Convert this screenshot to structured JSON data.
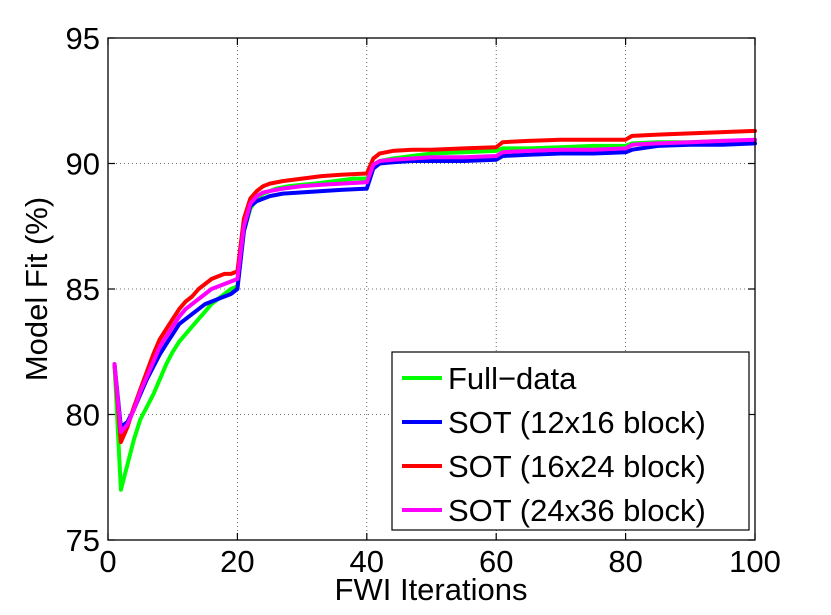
{
  "chart_data": {
    "type": "line",
    "title": "",
    "xlabel": "FWI Iterations",
    "ylabel": "Model Fit (%)",
    "xlim": [
      0,
      100
    ],
    "ylim": [
      75,
      95
    ],
    "xticks": [
      0,
      20,
      40,
      60,
      80,
      100
    ],
    "yticks": [
      75,
      80,
      85,
      90,
      95
    ],
    "xtick_labels": [
      "0",
      "20",
      "40",
      "60",
      "80",
      "100"
    ],
    "ytick_labels": [
      "75",
      "80",
      "85",
      "90",
      "95"
    ],
    "grid": true,
    "legend_position": "bottom-right",
    "series": [
      {
        "name": "Full−data",
        "color": "#00ff00",
        "points": [
          [
            1,
            82.0
          ],
          [
            2,
            77.0
          ],
          [
            3,
            78.0
          ],
          [
            4,
            79.0
          ],
          [
            5,
            79.8
          ],
          [
            6,
            80.3
          ],
          [
            7,
            80.8
          ],
          [
            8,
            81.4
          ],
          [
            9,
            82.0
          ],
          [
            10,
            82.5
          ],
          [
            11,
            82.9
          ],
          [
            12,
            83.2
          ],
          [
            13,
            83.5
          ],
          [
            14,
            83.8
          ],
          [
            15,
            84.1
          ],
          [
            16,
            84.4
          ],
          [
            17,
            84.6
          ],
          [
            18,
            84.8
          ],
          [
            19,
            85.0
          ],
          [
            20,
            85.1
          ],
          [
            21,
            87.3
          ],
          [
            22,
            88.2
          ],
          [
            23,
            88.6
          ],
          [
            24,
            88.8
          ],
          [
            25,
            88.9
          ],
          [
            26,
            89.0
          ],
          [
            27,
            89.05
          ],
          [
            28,
            89.1
          ],
          [
            30,
            89.15
          ],
          [
            32,
            89.2
          ],
          [
            35,
            89.3
          ],
          [
            38,
            89.4
          ],
          [
            40,
            89.4
          ],
          [
            41,
            89.9
          ],
          [
            42,
            90.1
          ],
          [
            44,
            90.2
          ],
          [
            47,
            90.3
          ],
          [
            50,
            90.4
          ],
          [
            55,
            90.45
          ],
          [
            60,
            90.5
          ],
          [
            61,
            90.6
          ],
          [
            65,
            90.6
          ],
          [
            70,
            90.65
          ],
          [
            75,
            90.7
          ],
          [
            80,
            90.7
          ],
          [
            81,
            90.8
          ],
          [
            85,
            90.85
          ],
          [
            90,
            90.85
          ],
          [
            95,
            90.9
          ],
          [
            100,
            90.9
          ]
        ]
      },
      {
        "name": "SOT (12x16 block)",
        "color": "#0000ff",
        "points": [
          [
            1,
            82.0
          ],
          [
            2,
            79.5
          ],
          [
            3,
            79.7
          ],
          [
            4,
            80.2
          ],
          [
            5,
            80.8
          ],
          [
            6,
            81.4
          ],
          [
            7,
            81.9
          ],
          [
            8,
            82.4
          ],
          [
            9,
            82.8
          ],
          [
            10,
            83.2
          ],
          [
            11,
            83.6
          ],
          [
            12,
            83.8
          ],
          [
            13,
            84.0
          ],
          [
            14,
            84.2
          ],
          [
            15,
            84.4
          ],
          [
            16,
            84.5
          ],
          [
            17,
            84.6
          ],
          [
            18,
            84.7
          ],
          [
            19,
            84.8
          ],
          [
            20,
            85.0
          ],
          [
            21,
            87.3
          ],
          [
            22,
            88.3
          ],
          [
            23,
            88.5
          ],
          [
            24,
            88.6
          ],
          [
            25,
            88.7
          ],
          [
            27,
            88.8
          ],
          [
            30,
            88.85
          ],
          [
            33,
            88.9
          ],
          [
            36,
            88.95
          ],
          [
            40,
            89.0
          ],
          [
            41,
            89.8
          ],
          [
            42,
            90.0
          ],
          [
            44,
            90.05
          ],
          [
            47,
            90.1
          ],
          [
            50,
            90.1
          ],
          [
            55,
            90.1
          ],
          [
            60,
            90.15
          ],
          [
            61,
            90.3
          ],
          [
            65,
            90.35
          ],
          [
            70,
            90.4
          ],
          [
            75,
            90.4
          ],
          [
            80,
            90.45
          ],
          [
            81,
            90.55
          ],
          [
            85,
            90.7
          ],
          [
            90,
            90.75
          ],
          [
            95,
            90.75
          ],
          [
            100,
            90.8
          ]
        ]
      },
      {
        "name": "SOT (16x24 block)",
        "color": "#ff0000",
        "points": [
          [
            1,
            82.0
          ],
          [
            2,
            78.9
          ],
          [
            3,
            79.5
          ],
          [
            4,
            80.3
          ],
          [
            5,
            81.0
          ],
          [
            6,
            81.7
          ],
          [
            7,
            82.4
          ],
          [
            8,
            83.0
          ],
          [
            9,
            83.4
          ],
          [
            10,
            83.8
          ],
          [
            11,
            84.2
          ],
          [
            12,
            84.5
          ],
          [
            13,
            84.7
          ],
          [
            14,
            85.0
          ],
          [
            15,
            85.2
          ],
          [
            16,
            85.4
          ],
          [
            17,
            85.5
          ],
          [
            18,
            85.6
          ],
          [
            19,
            85.6
          ],
          [
            20,
            85.7
          ],
          [
            21,
            87.8
          ],
          [
            22,
            88.6
          ],
          [
            23,
            88.9
          ],
          [
            24,
            89.1
          ],
          [
            25,
            89.2
          ],
          [
            27,
            89.3
          ],
          [
            30,
            89.4
          ],
          [
            33,
            89.5
          ],
          [
            36,
            89.55
          ],
          [
            40,
            89.6
          ],
          [
            41,
            90.2
          ],
          [
            42,
            90.4
          ],
          [
            44,
            90.5
          ],
          [
            47,
            90.55
          ],
          [
            50,
            90.55
          ],
          [
            55,
            90.6
          ],
          [
            60,
            90.65
          ],
          [
            61,
            90.85
          ],
          [
            65,
            90.9
          ],
          [
            70,
            90.95
          ],
          [
            75,
            90.95
          ],
          [
            80,
            90.95
          ],
          [
            81,
            91.1
          ],
          [
            85,
            91.15
          ],
          [
            90,
            91.2
          ],
          [
            95,
            91.25
          ],
          [
            100,
            91.3
          ]
        ]
      },
      {
        "name": "SOT (24x36 block)",
        "color": "#ff00ff",
        "points": [
          [
            1,
            82.0
          ],
          [
            2,
            79.3
          ],
          [
            3,
            79.6
          ],
          [
            4,
            80.2
          ],
          [
            5,
            80.9
          ],
          [
            6,
            81.5
          ],
          [
            7,
            82.1
          ],
          [
            8,
            82.7
          ],
          [
            9,
            83.1
          ],
          [
            10,
            83.5
          ],
          [
            11,
            83.9
          ],
          [
            12,
            84.2
          ],
          [
            13,
            84.4
          ],
          [
            14,
            84.6
          ],
          [
            15,
            84.8
          ],
          [
            16,
            85.0
          ],
          [
            17,
            85.1
          ],
          [
            18,
            85.2
          ],
          [
            19,
            85.3
          ],
          [
            20,
            85.4
          ],
          [
            21,
            87.5
          ],
          [
            22,
            88.4
          ],
          [
            23,
            88.7
          ],
          [
            24,
            88.85
          ],
          [
            25,
            88.9
          ],
          [
            27,
            89.0
          ],
          [
            30,
            89.1
          ],
          [
            33,
            89.15
          ],
          [
            36,
            89.2
          ],
          [
            40,
            89.25
          ],
          [
            41,
            89.95
          ],
          [
            42,
            90.1
          ],
          [
            44,
            90.15
          ],
          [
            47,
            90.2
          ],
          [
            50,
            90.25
          ],
          [
            55,
            90.25
          ],
          [
            60,
            90.3
          ],
          [
            61,
            90.45
          ],
          [
            65,
            90.5
          ],
          [
            70,
            90.55
          ],
          [
            75,
            90.55
          ],
          [
            80,
            90.6
          ],
          [
            81,
            90.75
          ],
          [
            85,
            90.8
          ],
          [
            90,
            90.85
          ],
          [
            95,
            90.9
          ],
          [
            100,
            90.95
          ]
        ]
      }
    ]
  }
}
